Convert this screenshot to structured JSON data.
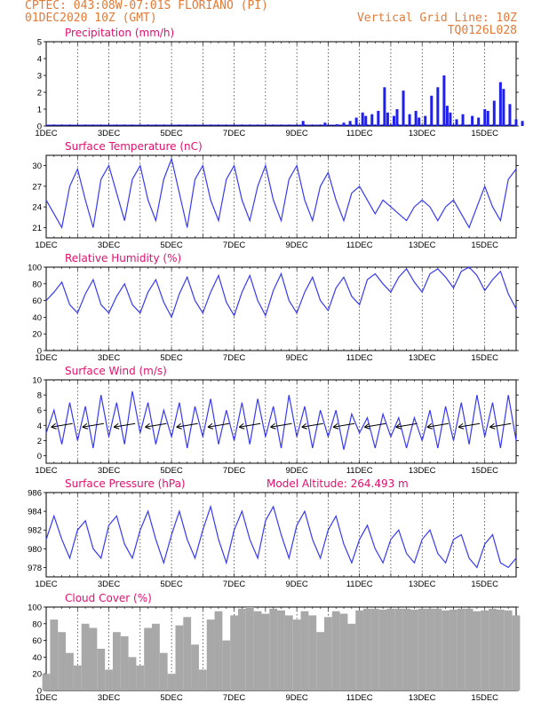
{
  "header": {
    "line1": "CPTEC:   043:08W-07:01S   FLORIANO (PI)",
    "line2": "01DEC2020 10Z (GMT)",
    "right1": "Vertical Grid Line: 10Z",
    "right2": "TQ0126L028"
  },
  "colors": {
    "line": "#3a3af0",
    "bar": "#2020ee",
    "cloud": "#a8a8a8",
    "title": "#e0106e",
    "header": "#e07b39",
    "grid": "#000000"
  },
  "x_ticks": [
    "1DEC",
    "3DEC",
    "5DEC",
    "7DEC",
    "9DEC",
    "11DEC",
    "13DEC",
    "15DEC"
  ],
  "chart_data": [
    {
      "id": "precip",
      "type": "bar",
      "title": "Precipitation (mm/h)",
      "ylim": [
        0,
        5
      ],
      "yticks": [
        0,
        1,
        2,
        3,
        4,
        5
      ],
      "x_unit": "days since 01DEC2020 10Z",
      "x": [
        8.2,
        8.9,
        9.3,
        9.5,
        9.7,
        9.9,
        10.1,
        10.2,
        10.4,
        10.6,
        10.8,
        10.9,
        11.1,
        11.2,
        11.4,
        11.6,
        11.8,
        11.9,
        12.1,
        12.3,
        12.5,
        12.7,
        12.8,
        12.9,
        13.1,
        13.3,
        13.6,
        13.8,
        14.0,
        14.1,
        14.3,
        14.5,
        14.6,
        14.8,
        15.0,
        15.2
      ],
      "values": [
        0.3,
        0.2,
        0.1,
        0.2,
        0.3,
        0.5,
        0.8,
        0.6,
        0.7,
        0.9,
        2.3,
        0.8,
        0.6,
        1.0,
        2.1,
        0.7,
        0.9,
        0.5,
        0.6,
        1.8,
        2.3,
        3.0,
        1.2,
        0.8,
        0.4,
        0.7,
        0.6,
        0.5,
        1.0,
        0.9,
        1.5,
        2.6,
        2.2,
        1.3,
        0.4,
        0.3
      ],
      "xlim": [
        0,
        15
      ]
    },
    {
      "id": "temp",
      "type": "line",
      "title": "Surface Temperature (nC)",
      "ylim": [
        19.5,
        31.5
      ],
      "yticks": [
        21,
        24,
        27,
        30
      ],
      "x": [
        0,
        0.25,
        0.5,
        0.75,
        1.0,
        1.25,
        1.5,
        1.75,
        2.0,
        2.25,
        2.5,
        2.75,
        3.0,
        3.25,
        3.5,
        3.75,
        4.0,
        4.25,
        4.5,
        4.75,
        5.0,
        5.25,
        5.5,
        5.75,
        6.0,
        6.25,
        6.5,
        6.75,
        7.0,
        7.25,
        7.5,
        7.75,
        8.0,
        8.25,
        8.5,
        8.75,
        9.0,
        9.25,
        9.5,
        9.75,
        10.0,
        10.25,
        10.5,
        10.75,
        11.0,
        11.25,
        11.5,
        11.75,
        12.0,
        12.25,
        12.5,
        12.75,
        13.0,
        13.25,
        13.5,
        13.75,
        14.0,
        14.25,
        14.5,
        14.75,
        15.0
      ],
      "values": [
        25,
        23,
        21,
        27,
        29.5,
        25,
        21,
        28,
        30,
        26,
        22,
        28,
        30,
        25,
        22,
        28,
        31,
        26,
        21,
        28,
        30,
        25,
        22,
        28,
        30,
        25,
        22,
        27,
        30,
        25,
        22,
        28,
        30,
        25,
        22,
        27,
        29,
        25,
        22,
        26,
        27,
        25,
        23,
        25,
        24,
        23,
        22,
        24,
        25,
        24,
        22,
        24,
        25,
        23,
        21,
        24,
        27,
        24,
        22,
        28,
        29.5
      ],
      "xlim": [
        0,
        15
      ]
    },
    {
      "id": "rh",
      "type": "line",
      "title": "Relative Humidity (%)",
      "ylim": [
        0,
        100
      ],
      "yticks": [
        0,
        20,
        40,
        60,
        80,
        100
      ],
      "x": [
        0,
        0.25,
        0.5,
        0.75,
        1.0,
        1.25,
        1.5,
        1.75,
        2.0,
        2.25,
        2.5,
        2.75,
        3.0,
        3.25,
        3.5,
        3.75,
        4.0,
        4.25,
        4.5,
        4.75,
        5.0,
        5.25,
        5.5,
        5.75,
        6.0,
        6.25,
        6.5,
        6.75,
        7.0,
        7.25,
        7.5,
        7.75,
        8.0,
        8.25,
        8.5,
        8.75,
        9.0,
        9.25,
        9.5,
        9.75,
        10.0,
        10.25,
        10.5,
        10.75,
        11.0,
        11.25,
        11.5,
        11.75,
        12.0,
        12.25,
        12.5,
        12.75,
        13.0,
        13.25,
        13.5,
        13.75,
        14.0,
        14.25,
        14.5,
        14.75,
        15.0
      ],
      "values": [
        60,
        70,
        82,
        55,
        45,
        68,
        85,
        55,
        45,
        65,
        80,
        55,
        45,
        70,
        85,
        58,
        40,
        68,
        88,
        60,
        45,
        70,
        90,
        58,
        42,
        70,
        90,
        60,
        42,
        72,
        92,
        60,
        45,
        70,
        88,
        60,
        48,
        75,
        88,
        65,
        55,
        85,
        92,
        80,
        70,
        88,
        98,
        82,
        70,
        92,
        98,
        88,
        75,
        95,
        100,
        90,
        72,
        85,
        95,
        68,
        50
      ],
      "xlim": [
        0,
        15
      ]
    },
    {
      "id": "wind",
      "type": "line",
      "title": "Surface Wind (m/s)",
      "ylim": [
        -1,
        10
      ],
      "yticks": [
        0,
        2,
        4,
        6,
        8,
        10
      ],
      "x": [
        0,
        0.25,
        0.5,
        0.75,
        1.0,
        1.25,
        1.5,
        1.75,
        2.0,
        2.25,
        2.5,
        2.75,
        3.0,
        3.25,
        3.5,
        3.75,
        4.0,
        4.25,
        4.5,
        4.75,
        5.0,
        5.25,
        5.5,
        5.75,
        6.0,
        6.25,
        6.5,
        6.75,
        7.0,
        7.25,
        7.5,
        7.75,
        8.0,
        8.25,
        8.5,
        8.75,
        9.0,
        9.25,
        9.5,
        9.75,
        10.0,
        10.25,
        10.5,
        10.75,
        11.0,
        11.25,
        11.5,
        11.75,
        12.0,
        12.25,
        12.5,
        12.75,
        13.0,
        13.25,
        13.5,
        13.75,
        14.0,
        14.25,
        14.5,
        14.75,
        15.0
      ],
      "values": [
        3,
        6,
        1.5,
        7,
        2,
        6.5,
        1,
        8,
        2.5,
        7,
        1.5,
        8.5,
        3,
        7,
        1.5,
        6,
        2.5,
        7,
        1,
        6.5,
        2.5,
        7.5,
        1.5,
        6,
        2,
        7,
        1.5,
        7.5,
        2.5,
        6.5,
        1,
        8,
        2.5,
        6.5,
        1,
        6,
        2.5,
        6,
        0.8,
        5.5,
        3,
        5,
        1,
        5.5,
        2.5,
        5,
        1,
        5,
        2,
        6,
        1,
        6.5,
        2,
        7,
        1.5,
        8,
        2.5,
        7,
        1,
        8,
        2
      ],
      "xlim": [
        0,
        15
      ]
    },
    {
      "id": "pressure",
      "type": "line",
      "title": "Surface Pressure (hPa)",
      "annotation": "Model Altitude: 264.493  m",
      "ylim": [
        977,
        986
      ],
      "yticks": [
        978,
        980,
        982,
        984,
        986
      ],
      "x": [
        0,
        0.25,
        0.5,
        0.75,
        1.0,
        1.25,
        1.5,
        1.75,
        2.0,
        2.25,
        2.5,
        2.75,
        3.0,
        3.25,
        3.5,
        3.75,
        4.0,
        4.25,
        4.5,
        4.75,
        5.0,
        5.25,
        5.5,
        5.75,
        6.0,
        6.25,
        6.5,
        6.75,
        7.0,
        7.25,
        7.5,
        7.75,
        8.0,
        8.25,
        8.5,
        8.75,
        9.0,
        9.25,
        9.5,
        9.75,
        10.0,
        10.25,
        10.5,
        10.75,
        11.0,
        11.25,
        11.5,
        11.75,
        12.0,
        12.25,
        12.5,
        12.75,
        13.0,
        13.25,
        13.5,
        13.75,
        14.0,
        14.25,
        14.5,
        14.75,
        15.0
      ],
      "values": [
        981,
        983.5,
        981,
        979,
        982,
        983,
        980,
        979,
        982.5,
        983.5,
        980.5,
        979,
        982,
        984,
        981,
        978.5,
        981.5,
        984,
        981,
        979,
        982,
        984.5,
        981,
        978.5,
        982,
        984,
        981,
        979,
        983,
        984.5,
        981.5,
        979,
        982.5,
        984,
        981,
        979,
        982,
        983.5,
        980.5,
        978.5,
        981,
        982.5,
        980,
        978.5,
        981,
        982,
        979.5,
        978.5,
        981,
        982,
        979.5,
        978.5,
        981,
        981.5,
        979,
        978,
        980.5,
        981.5,
        978.5,
        978,
        979
      ],
      "xlim": [
        0,
        15
      ]
    },
    {
      "id": "cloud",
      "type": "area",
      "title": "Cloud Cover (%)",
      "ylim": [
        0,
        100
      ],
      "yticks": [
        0,
        20,
        40,
        60,
        80,
        100
      ],
      "x": [
        0,
        0.25,
        0.5,
        0.75,
        1.0,
        1.25,
        1.5,
        1.75,
        2.0,
        2.25,
        2.5,
        2.75,
        3.0,
        3.25,
        3.5,
        3.75,
        4.0,
        4.25,
        4.5,
        4.75,
        5.0,
        5.25,
        5.5,
        5.75,
        6.0,
        6.25,
        6.5,
        6.75,
        7.0,
        7.25,
        7.5,
        7.75,
        8.0,
        8.25,
        8.5,
        8.75,
        9.0,
        9.25,
        9.5,
        9.75,
        10.0,
        10.25,
        10.5,
        10.75,
        11.0,
        11.25,
        11.5,
        11.75,
        12.0,
        12.25,
        12.5,
        12.75,
        13.0,
        13.25,
        13.5,
        13.75,
        14.0,
        14.25,
        14.5,
        14.75,
        15.0
      ],
      "values": [
        20,
        85,
        70,
        45,
        30,
        80,
        75,
        50,
        25,
        70,
        65,
        40,
        30,
        75,
        80,
        45,
        20,
        78,
        88,
        55,
        25,
        85,
        95,
        60,
        90,
        98,
        100,
        95,
        92,
        98,
        96,
        90,
        85,
        95,
        90,
        70,
        88,
        95,
        92,
        80,
        96,
        98,
        98,
        97,
        98,
        98,
        98,
        97,
        98,
        98,
        98,
        96,
        97,
        98,
        98,
        95,
        96,
        98,
        97,
        96,
        90
      ],
      "xlim": [
        0,
        15
      ]
    }
  ]
}
